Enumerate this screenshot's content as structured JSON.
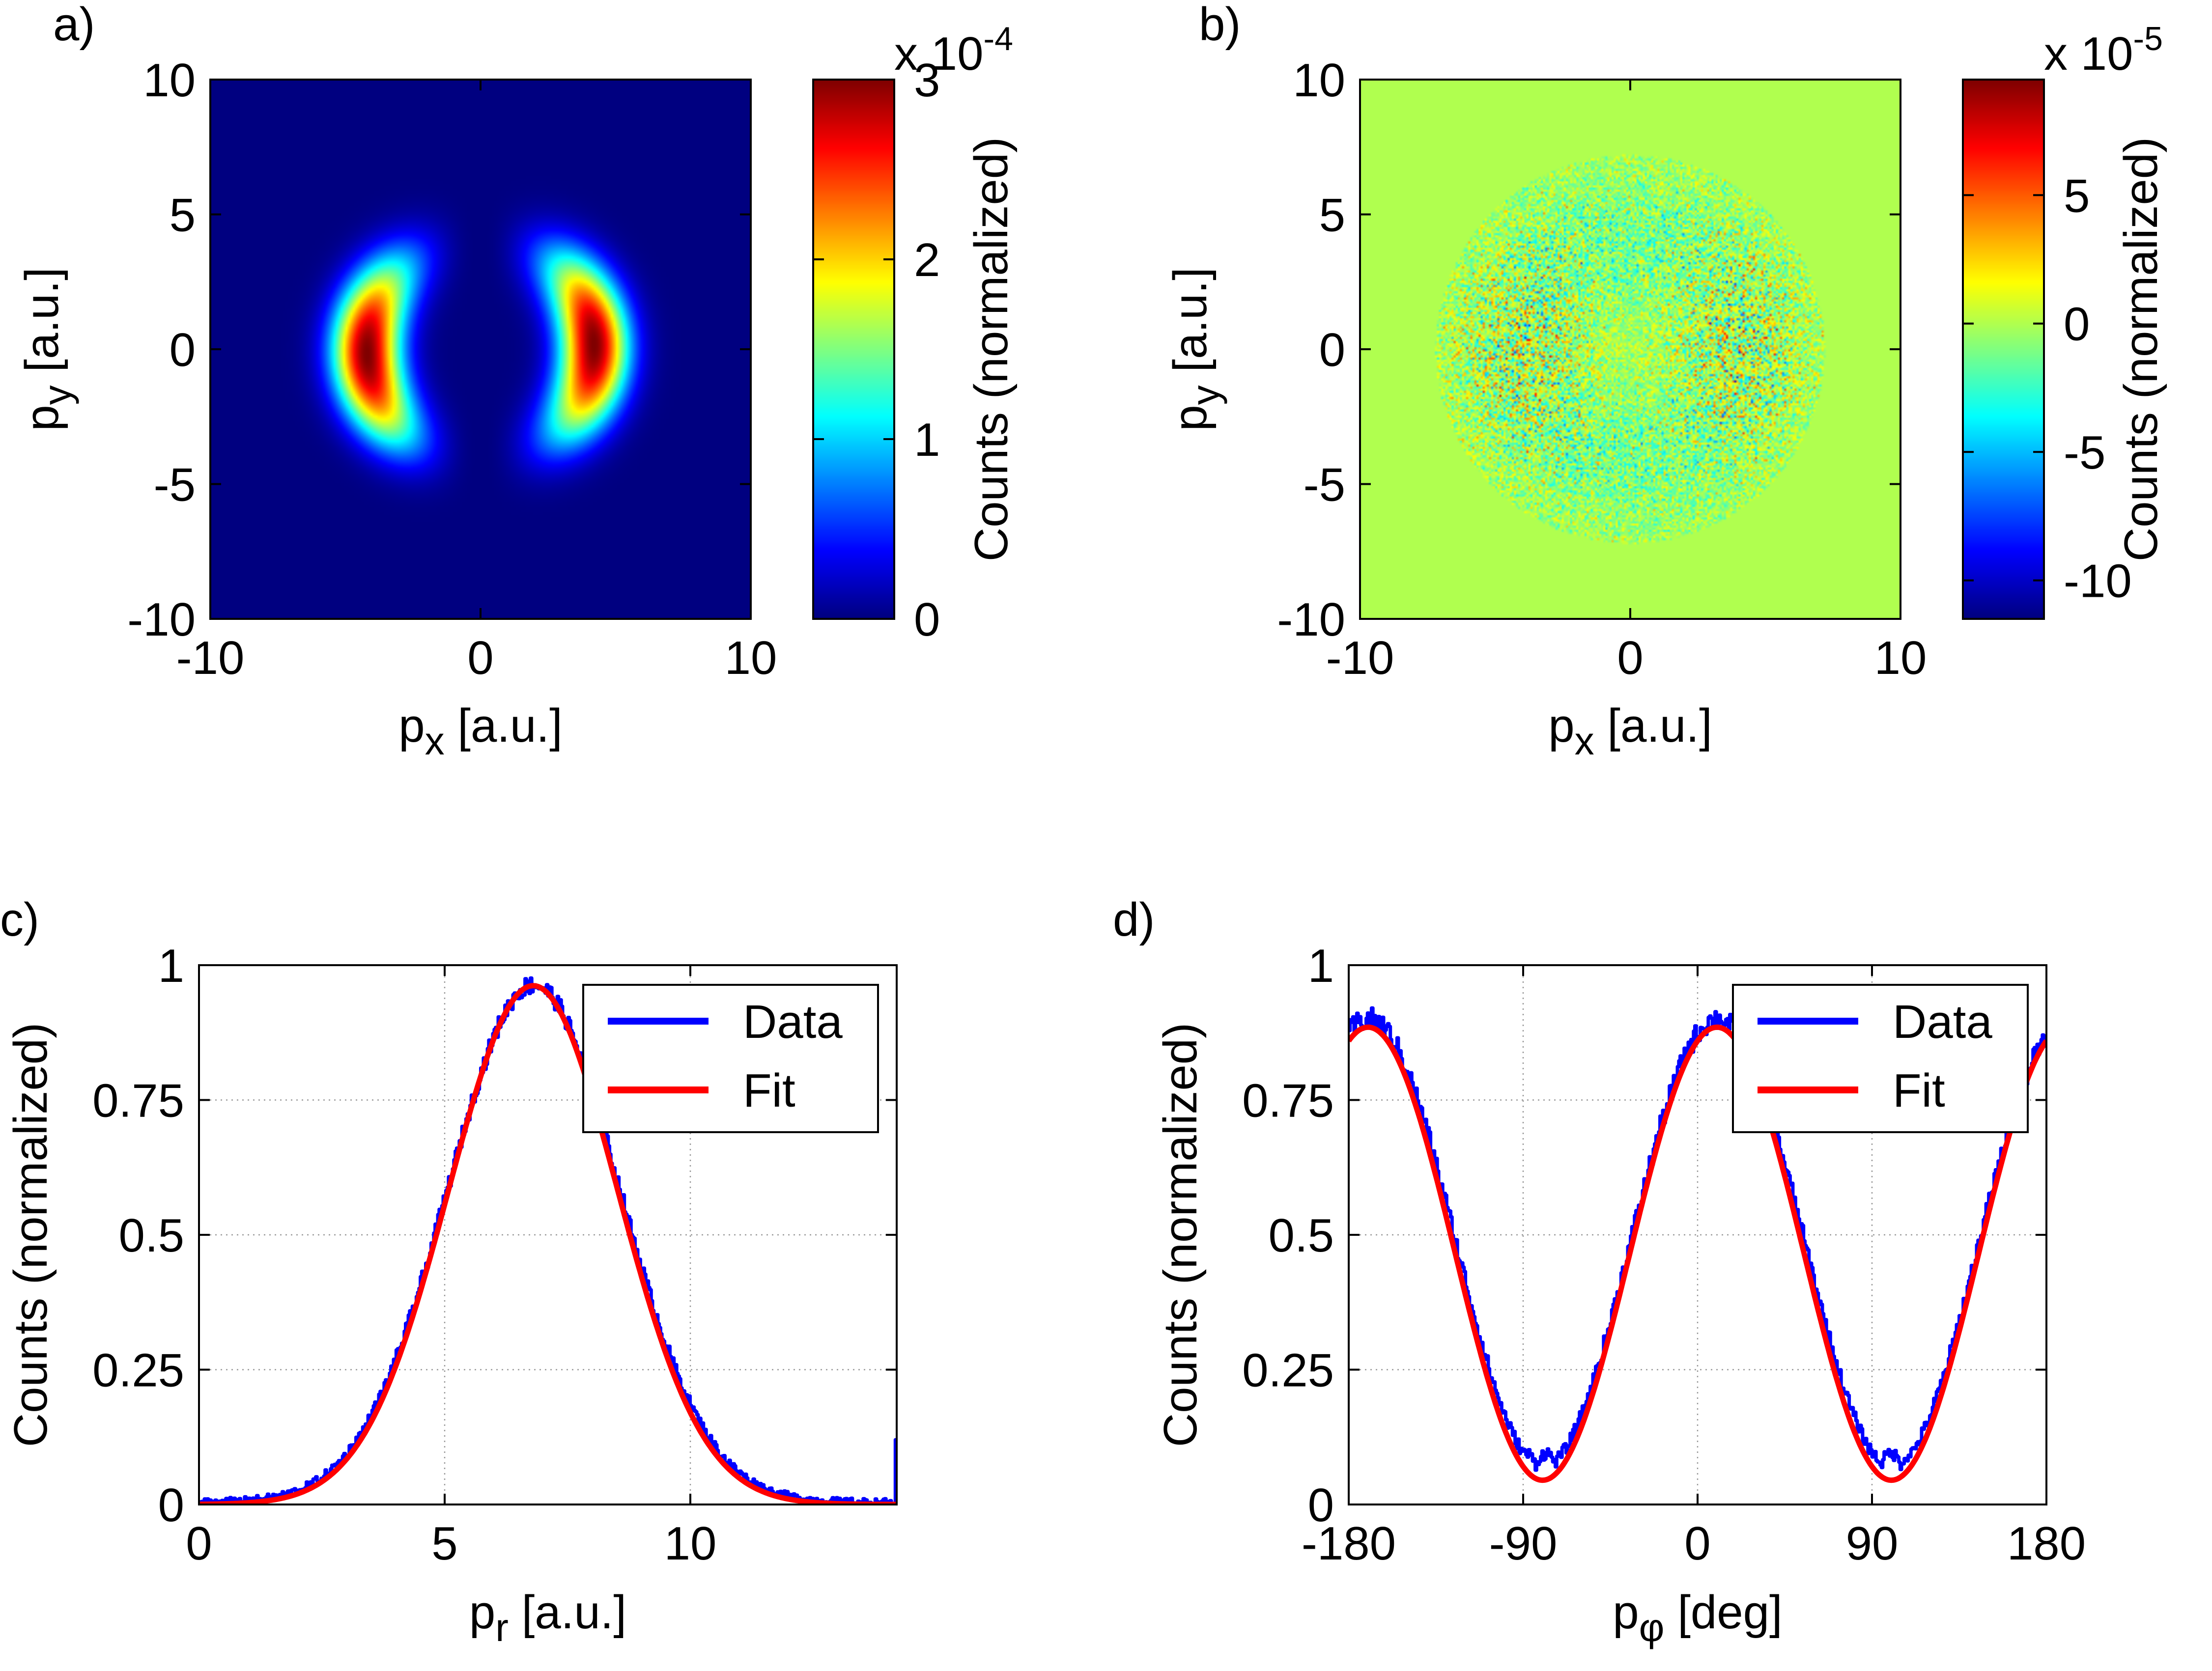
{
  "figure": {
    "panel_labels": [
      "a)",
      "b)",
      "c)",
      "d)"
    ]
  },
  "chart_data": [
    {
      "id": "a",
      "type": "heatmap",
      "panel_label": "a)",
      "xlabel_main": "p",
      "xlabel_sub": "x",
      "xlabel_rest": " [a.u.]",
      "ylabel_main": "p",
      "ylabel_sub": "y",
      "ylabel_rest": " [a.u.]",
      "xlim": [
        -10,
        10
      ],
      "ylim": [
        -10,
        10
      ],
      "xticks": [
        "-10",
        "0",
        "10"
      ],
      "yticks": [
        "-10",
        "-5",
        "0",
        "5",
        "10"
      ],
      "colormap": "jet",
      "colorbar": {
        "label": "Counts (normalized)",
        "range": [
          0,
          3
        ],
        "ticks": [
          "0",
          "1",
          "2",
          "3"
        ],
        "multiplier_prefix": "x 10",
        "multiplier_exp": "-4"
      },
      "features": [
        {
          "name": "left lobe",
          "center": [
            -4.0,
            -0.5
          ],
          "peak": 3.0
        },
        {
          "name": "right lobe",
          "center": [
            4.0,
            0.5
          ],
          "peak": 3.0
        }
      ]
    },
    {
      "id": "b",
      "type": "heatmap",
      "panel_label": "b)",
      "xlabel_main": "p",
      "xlabel_sub": "x",
      "xlabel_rest": " [a.u.]",
      "ylabel_main": "p",
      "ylabel_sub": "y",
      "ylabel_rest": " [a.u.]",
      "xlim": [
        -10,
        10
      ],
      "ylim": [
        -10,
        10
      ],
      "xticks": [
        "-10",
        "0",
        "10"
      ],
      "yticks": [
        "-10",
        "-5",
        "0",
        "5",
        "10"
      ],
      "colormap": "jet",
      "background_value": 0,
      "colorbar": {
        "label": "Counts (normalized)",
        "range": [
          -11.5,
          9.5
        ],
        "ticks": [
          "-10",
          "-5",
          "0",
          "5"
        ],
        "tick_values": [
          -10,
          -5,
          0,
          5
        ],
        "multiplier_prefix": "x 10",
        "multiplier_exp": "-5"
      }
    },
    {
      "id": "c",
      "type": "line",
      "panel_label": "c)",
      "xlabel_main": "p",
      "xlabel_sub": "r",
      "xlabel_rest": " [a.u.]",
      "ylabel": "Counts (normalized)",
      "xlim": [
        0,
        14.2
      ],
      "ylim": [
        0,
        1
      ],
      "xticks": [
        "0",
        "5",
        "10"
      ],
      "xtick_values": [
        0,
        5,
        10
      ],
      "yticks": [
        "0",
        "0.25",
        "0.5",
        "0.75",
        "1"
      ],
      "ytick_values": [
        0,
        0.25,
        0.5,
        0.75,
        1
      ],
      "grid": true,
      "legend": {
        "position": "top-right",
        "entries": [
          "Data",
          "Fit"
        ]
      },
      "series": [
        {
          "name": "Data",
          "color": "#0000ff",
          "model": "gaussian",
          "amplitude": 0.96,
          "center": 6.8,
          "sigma": 1.75,
          "baseline": 0.004,
          "noise": 0.012,
          "end_spike": 0.12
        },
        {
          "name": "Fit",
          "color": "#ff0000",
          "model": "gaussian",
          "amplitude": 0.962,
          "center": 6.8,
          "sigma": 1.72
        }
      ]
    },
    {
      "id": "d",
      "type": "line",
      "panel_label": "d)",
      "xlabel_main": "p",
      "xlabel_sub": "φ",
      "xlabel_rest": " [deg]",
      "ylabel": "Counts (normalized)",
      "xlim": [
        -180,
        180
      ],
      "ylim": [
        0,
        1
      ],
      "xticks": [
        "-180",
        "-90",
        "0",
        "90",
        "180"
      ],
      "xtick_values": [
        -180,
        -90,
        0,
        90,
        180
      ],
      "yticks": [
        "0",
        "0.25",
        "0.5",
        "0.75",
        "1"
      ],
      "ytick_values": [
        0,
        0.25,
        0.5,
        0.75,
        1
      ],
      "grid": true,
      "legend": {
        "position": "top-right",
        "entries": [
          "Data",
          "Fit"
        ]
      },
      "series": [
        {
          "name": "Data",
          "color": "#0000ff",
          "model": "cos2",
          "mean": 0.485,
          "amplitude": 0.415,
          "phase_deg": 10,
          "noise": 0.015,
          "floor": 0.075
        },
        {
          "name": "Fit",
          "color": "#ff0000",
          "model": "cos2",
          "mean": 0.465,
          "amplitude": 0.42,
          "phase_deg": 10
        }
      ]
    }
  ]
}
